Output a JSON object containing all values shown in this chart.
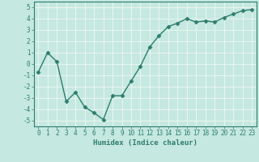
{
  "x": [
    0,
    1,
    2,
    3,
    4,
    5,
    6,
    7,
    8,
    9,
    10,
    11,
    12,
    13,
    14,
    15,
    16,
    17,
    18,
    19,
    20,
    21,
    22,
    23
  ],
  "y": [
    -0.7,
    1.0,
    0.2,
    -3.3,
    -2.5,
    -3.8,
    -4.3,
    -4.9,
    -2.8,
    -2.8,
    -1.5,
    -0.2,
    1.5,
    2.5,
    3.3,
    3.6,
    4.0,
    3.7,
    3.8,
    3.7,
    4.1,
    4.4,
    4.7,
    4.8
  ],
  "line_color": "#2d7d6e",
  "marker": "D",
  "markersize": 2.5,
  "linewidth": 1.0,
  "xlabel": "Humidex (Indice chaleur)",
  "xlim": [
    -0.5,
    23.5
  ],
  "ylim": [
    -5.5,
    5.5
  ],
  "yticks": [
    -5,
    -4,
    -3,
    -2,
    -1,
    0,
    1,
    2,
    3,
    4,
    5
  ],
  "xticks": [
    0,
    1,
    2,
    3,
    4,
    5,
    6,
    7,
    8,
    9,
    10,
    11,
    12,
    13,
    14,
    15,
    16,
    17,
    18,
    19,
    20,
    21,
    22,
    23
  ],
  "bg_color": "#c5e8e0",
  "grid_color": "#e8f5f0",
  "tick_color": "#2d7d6e",
  "label_color": "#2d7d6e",
  "font_size": 5.5,
  "xlabel_fontsize": 6.5
}
